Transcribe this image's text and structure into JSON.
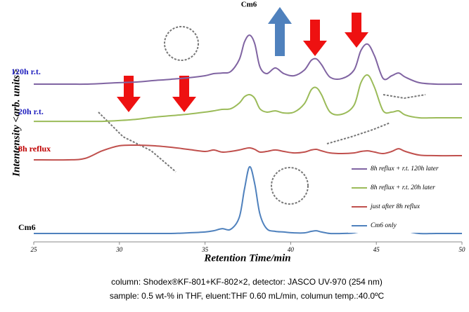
{
  "chart_data": {
    "type": "line",
    "peak_label": "Cm6",
    "series_labels": [
      {
        "text": "120h r.t.",
        "color": "#1f1fbf"
      },
      {
        "text": "20h r.t.",
        "color": "#1f1fbf"
      },
      {
        "text": "8h reflux",
        "color": "#c00000"
      },
      {
        "text": "Cm6",
        "color": "#000000"
      }
    ],
    "x_label": "Retention Time/min",
    "y_label": "Intentensity <arb. units>",
    "x": [
      25,
      27,
      28,
      29,
      30,
      31,
      32,
      33,
      34,
      35,
      35.5,
      36,
      36.5,
      37,
      37.3,
      37.6,
      37.9,
      38.2,
      38.6,
      39.1,
      39.6,
      40.2,
      40.8,
      41.2,
      41.5,
      41.8,
      42.3,
      43,
      43.7,
      44.1,
      44.5,
      44.9,
      45.4,
      45.9,
      46.3,
      46.7,
      47.5,
      48.5,
      50
    ],
    "series": [
      {
        "name": "8h reflux + r.t. 120h later",
        "color": "#8064a2",
        "values": [
          75,
          75,
          75,
          75.3,
          75.7,
          76,
          76.7,
          77.3,
          78,
          79,
          80,
          80.3,
          81,
          86.7,
          95,
          98.3,
          94.3,
          83.3,
          80,
          82.7,
          80,
          79,
          81.7,
          86.3,
          87,
          84.3,
          78.3,
          77.7,
          81.7,
          91,
          94,
          88.3,
          77.7,
          79,
          80.3,
          78.3,
          75.7,
          75,
          75
        ]
      },
      {
        "name": "8h reflux + r.t. 20h later",
        "color": "#9bbb59",
        "values": [
          57.3,
          57.3,
          57.3,
          57.3,
          57.7,
          58.3,
          59.3,
          60,
          60.7,
          61.7,
          62.3,
          63,
          63.3,
          66,
          69,
          70,
          68.3,
          63.3,
          61.7,
          62.3,
          61.3,
          61.7,
          65.7,
          72.3,
          73.3,
          70,
          61.7,
          60.7,
          65,
          75.7,
          79.3,
          73.3,
          62.3,
          61.7,
          62.3,
          60.3,
          59,
          59,
          59
        ]
      },
      {
        "name": "just after 8h reflux",
        "color": "#c0504d",
        "values": [
          39,
          39,
          39.7,
          43.3,
          45.7,
          46,
          45.7,
          45,
          44,
          43,
          43.7,
          42.7,
          43,
          43.7,
          44.3,
          44.7,
          44,
          42.7,
          43,
          43.7,
          43,
          42.3,
          42.7,
          43.7,
          44,
          43.3,
          42.3,
          42,
          42.3,
          43,
          43.3,
          42.7,
          42,
          43,
          44.3,
          43,
          41.3,
          41,
          41
        ]
      },
      {
        "name": "Cm6 only",
        "color": "#4f81bd",
        "values": [
          4,
          4,
          4,
          4,
          4,
          4,
          4,
          4,
          4.3,
          4.7,
          5.3,
          6.3,
          6,
          11.7,
          25,
          35.7,
          27.7,
          13.3,
          6.3,
          5,
          4.7,
          4.3,
          4.3,
          5,
          5.3,
          4.7,
          4,
          4,
          4.3,
          5,
          6,
          5,
          4.7,
          6,
          6.7,
          5.3,
          4,
          4,
          4
        ]
      }
    ],
    "xlim": [
      25,
      50
    ],
    "xticks": [
      25,
      30,
      35,
      40,
      45,
      50
    ],
    "ylim": [
      0,
      110
    ],
    "grid": false,
    "legend": "lower right",
    "caption": [
      "column: Shodex®KF-801+KF-802×2,   detector: JASCO UV-970 (254 nm)",
      "sample: 0.5 wt-% in THF,  eluent:THF 0.60 mL/min,  columun temp.:40.0ºC"
    ]
  }
}
